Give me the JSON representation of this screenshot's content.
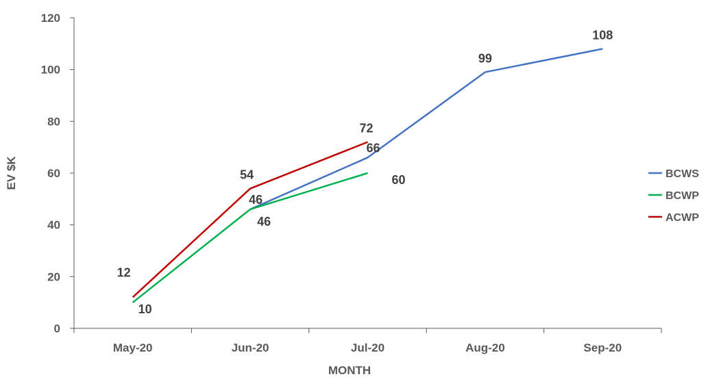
{
  "chart_data": {
    "type": "line",
    "categories": [
      "May-20",
      "Jun-20",
      "Jul-20",
      "Aug-20",
      "Sep-20"
    ],
    "xlabel": "MONTH",
    "ylabel": "EV $K",
    "ylim": [
      0,
      120
    ],
    "yticks": [
      "0",
      "20",
      "40",
      "60",
      "80",
      "100",
      "120"
    ],
    "grid": false,
    "legend_position": "right",
    "series": [
      {
        "name": "BCWS",
        "color": "#4472C4",
        "values": [
          null,
          46,
          66,
          99,
          108
        ],
        "labels": [
          "",
          "46",
          "66",
          "99",
          "108"
        ]
      },
      {
        "name": "BCWP",
        "color": "#00B050",
        "values": [
          10,
          46,
          60,
          null,
          null
        ],
        "labels": [
          "10",
          "46",
          "60",
          "",
          ""
        ]
      },
      {
        "name": "ACWP",
        "color": "#C00000",
        "values": [
          12,
          54,
          72,
          null,
          null
        ],
        "labels": [
          "12",
          "54",
          "72",
          "",
          ""
        ]
      }
    ]
  }
}
